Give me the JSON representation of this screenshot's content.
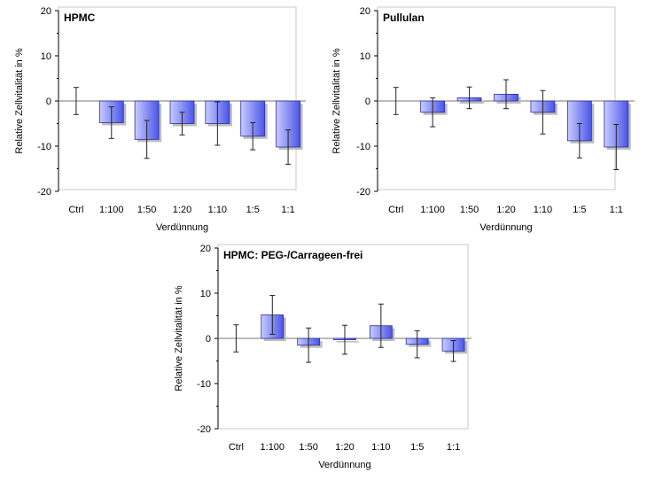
{
  "chart_data": [
    {
      "type": "bar",
      "title": "HPMC",
      "xlabel": "Verdünnung",
      "ylabel": "Relative Zellvitalität in %",
      "ylim": [
        -20,
        20
      ],
      "yticks": [
        "20",
        "10",
        "0",
        "-10",
        "-20"
      ],
      "categories": [
        "Ctrl",
        "1:100",
        "1:50",
        "1:20",
        "1:10",
        "1:5",
        "1:1"
      ],
      "values": [
        0,
        -4.8,
        -8.5,
        -5.0,
        -5.0,
        -7.8,
        -10.2
      ],
      "error": [
        3.0,
        3.5,
        4.2,
        2.5,
        4.8,
        3.0,
        3.8
      ]
    },
    {
      "type": "bar",
      "title": "Pullulan",
      "xlabel": "Verdünnung",
      "ylabel": "Relative Zellvitalität in %",
      "ylim": [
        -20,
        20
      ],
      "yticks": [
        "20",
        "10",
        "0",
        "-10",
        "-20"
      ],
      "categories": [
        "Ctrl",
        "1:100",
        "1:50",
        "1:20",
        "1:10",
        "1:5",
        "1:1"
      ],
      "values": [
        0,
        -2.5,
        0.7,
        1.5,
        -2.5,
        -8.8,
        -10.2
      ],
      "error": [
        3.0,
        3.2,
        2.4,
        3.2,
        4.8,
        3.8,
        5.0
      ]
    },
    {
      "type": "bar",
      "title": "HPMC: PEG-/Carrageen-frei",
      "xlabel": "Verdünnung",
      "ylabel": "Relative Zellvitalität in %",
      "ylim": [
        -20,
        20
      ],
      "yticks": [
        "20",
        "10",
        "0",
        "-10",
        "-20"
      ],
      "categories": [
        "Ctrl",
        "1:100",
        "1:50",
        "1:20",
        "1:10",
        "1:5",
        "1:1"
      ],
      "values": [
        0,
        5.2,
        -1.5,
        -0.3,
        2.8,
        -1.3,
        -2.8
      ],
      "error": [
        3.0,
        4.3,
        3.8,
        3.2,
        4.8,
        3.0,
        2.3
      ]
    }
  ],
  "colors": {
    "bar_light": "#c8ccff",
    "bar_dark": "#4a55e8",
    "bar_edge": "#2a2f9a",
    "axis": "#000000",
    "frame": "#c8c8c8",
    "shadow": "#bdbdbd"
  }
}
